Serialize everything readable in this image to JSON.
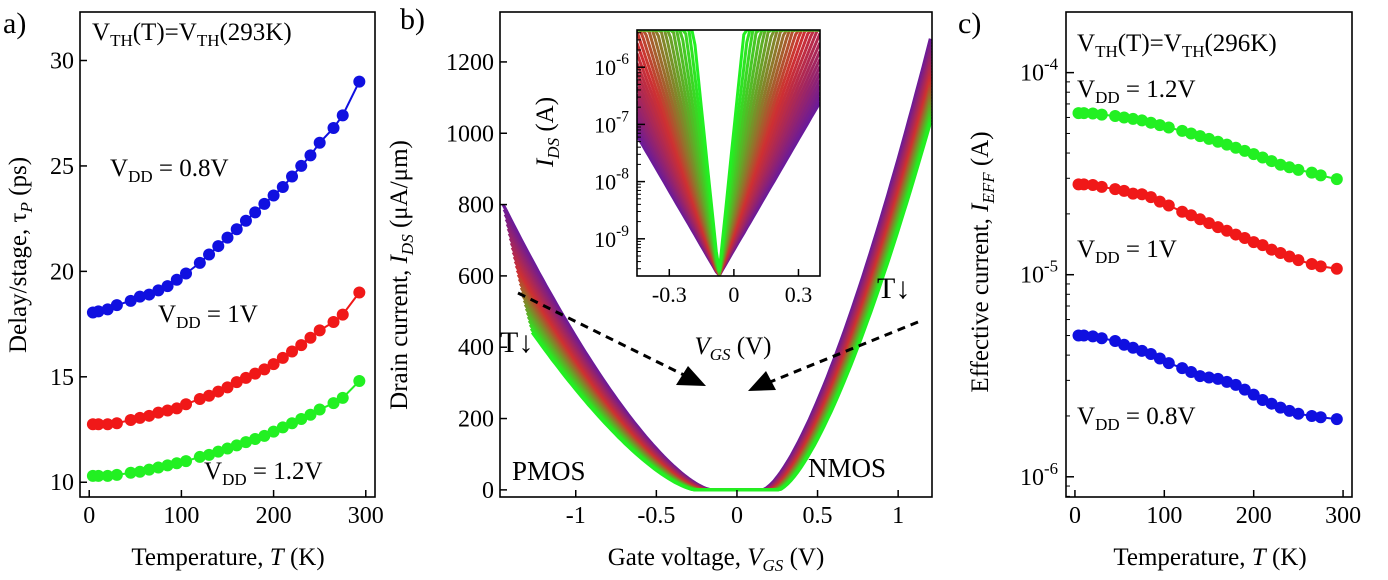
{
  "colors": {
    "blue": "#1010e0",
    "red": "#f01818",
    "green": "#22f022",
    "purple": "#6a1a9a"
  },
  "chart_data": [
    {
      "panel_label": "a)",
      "type": "line",
      "xlabel": {
        "base": "Temperature, ",
        "symbol": "T",
        "unit": " (K)"
      },
      "ylabel": {
        "base": "Delay/stage, τ",
        "sub": "P",
        "unit": " (ps)"
      },
      "xlim": [
        -10,
        310
      ],
      "ylim": [
        9.3,
        32.3
      ],
      "xticks": [
        0,
        100,
        200,
        300
      ],
      "yticks": [
        10,
        15,
        20,
        25,
        30
      ],
      "grid": false,
      "header": {
        "main": "V",
        "sub": "TH",
        "mid": "(T)=V",
        "sub2": "TH",
        "tail": "(293K)"
      },
      "x": [
        4,
        10,
        20,
        30,
        45,
        55,
        65,
        75,
        85,
        95,
        105,
        120,
        130,
        140,
        150,
        160,
        170,
        180,
        190,
        200,
        210,
        220,
        230,
        240,
        250,
        265,
        275,
        293
      ],
      "series": [
        {
          "color": "#1010e0",
          "vdd_label": {
            "pre": "V",
            "sub": "DD",
            "post": " = 0.8V"
          },
          "values": [
            18.05,
            18.1,
            18.2,
            18.4,
            18.6,
            18.8,
            18.9,
            19.1,
            19.3,
            19.6,
            19.9,
            20.4,
            20.8,
            21.2,
            21.6,
            22.0,
            22.4,
            22.8,
            23.2,
            23.6,
            24.0,
            24.5,
            25.0,
            25.5,
            26.1,
            26.8,
            27.4,
            29.0
          ]
        },
        {
          "color": "#f01818",
          "vdd_label": {
            "pre": "V",
            "sub": "DD",
            "post": " = 1V"
          },
          "values": [
            12.75,
            12.75,
            12.75,
            12.8,
            12.95,
            13.05,
            13.15,
            13.3,
            13.4,
            13.5,
            13.7,
            13.95,
            14.1,
            14.3,
            14.5,
            14.75,
            14.95,
            15.15,
            15.35,
            15.6,
            15.9,
            16.2,
            16.5,
            16.85,
            17.2,
            17.6,
            17.95,
            19.0
          ]
        },
        {
          "color": "#22f022",
          "vdd_label": {
            "pre": "V",
            "sub": "DD",
            "post": " = 1.2V"
          },
          "values": [
            10.3,
            10.3,
            10.3,
            10.35,
            10.45,
            10.5,
            10.6,
            10.7,
            10.8,
            10.9,
            11.0,
            11.2,
            11.3,
            11.45,
            11.6,
            11.75,
            11.9,
            12.05,
            12.2,
            12.4,
            12.6,
            12.8,
            13.0,
            13.2,
            13.45,
            13.75,
            14.0,
            14.8
          ]
        }
      ]
    },
    {
      "panel_label": "b)",
      "type": "line",
      "xlabel": {
        "base": "Gate voltage, ",
        "symbol": "V",
        "sub": "GS",
        "unit": " (V)"
      },
      "ylabel": {
        "base": "Drain current, ",
        "symbol": "I",
        "sub": "DS",
        "unit": " (μA/μm)"
      },
      "xlim": [
        -1.47,
        1.21
      ],
      "ylim": [
        -20,
        1340
      ],
      "xticks": [
        -1,
        -0.5,
        0,
        0.5,
        1
      ],
      "xtick_labels": [
        "-1",
        "-0.5",
        "0",
        "0.5",
        "1"
      ],
      "yticks": [
        0,
        200,
        400,
        600,
        800,
        1000,
        1200
      ],
      "grid": false,
      "curve_family": {
        "n_curves": 30,
        "color_hot": "#6a1a9a",
        "color_mid": "#d03030",
        "color_cold": "#22f022",
        "pmos_peak_range": [
          800,
          560
        ],
        "nmos_peak_range": [
          1265,
          1030
        ],
        "threshold_hot": 0.16,
        "threshold_cold": 0.26
      },
      "annotations": {
        "pmos": "PMOS",
        "nmos": "NMOS",
        "temp_left": "T↓",
        "temp_right": "T↓"
      },
      "inset": {
        "type": "line",
        "xlabel": {
          "symbol": "V",
          "sub": "GS",
          "unit": " (V)"
        },
        "ylabel": {
          "symbol": "I",
          "sub": "DS",
          "unit": " (A)"
        },
        "xlim": [
          -0.45,
          0.4
        ],
        "ylim_log": [
          -9.65,
          -5.35
        ],
        "xticks": [
          -0.3,
          0,
          0.3
        ],
        "xtick_labels": [
          "-0.3",
          "0",
          "0.3"
        ],
        "yticks_exp": [
          -9,
          -8,
          -7,
          -6
        ],
        "ytick_base": "10"
      }
    },
    {
      "panel_label": "c)",
      "type": "line",
      "xlabel": {
        "base": "Temperature, ",
        "symbol": "T",
        "unit": " (K)"
      },
      "ylabel": {
        "base": "Effective current, ",
        "symbol": "I",
        "sub": "EFF",
        "unit": " (A)"
      },
      "xlim": [
        -10,
        310
      ],
      "ylim_log": [
        -6.1,
        -3.7
      ],
      "yscale": "log",
      "xticks": [
        0,
        100,
        200,
        300
      ],
      "yticks_exp": [
        -6,
        -5,
        -4
      ],
      "ytick_base": "10",
      "grid": false,
      "header": {
        "main": "V",
        "sub": "TH",
        "mid": "(T)=V",
        "sub2": "TH",
        "tail": "(296K)"
      },
      "x": [
        4,
        10,
        20,
        30,
        45,
        55,
        65,
        75,
        85,
        95,
        105,
        120,
        130,
        140,
        150,
        160,
        170,
        180,
        190,
        200,
        210,
        220,
        230,
        240,
        250,
        265,
        275,
        293
      ],
      "series": [
        {
          "color": "#22f022",
          "vdd_label": {
            "pre": "V",
            "sub": "DD",
            "post": " = 1.2V"
          },
          "values": [
            6.3e-05,
            6.3e-05,
            6.28e-05,
            6.2e-05,
            6.1e-05,
            6e-05,
            5.9e-05,
            5.8e-05,
            5.65e-05,
            5.5e-05,
            5.35e-05,
            5.15e-05,
            5e-05,
            4.85e-05,
            4.7e-05,
            4.55e-05,
            4.4e-05,
            4.25e-05,
            4.1e-05,
            3.95e-05,
            3.8e-05,
            3.65e-05,
            3.5e-05,
            3.4e-05,
            3.3e-05,
            3.2e-05,
            3.1e-05,
            2.97e-05
          ]
        },
        {
          "color": "#f01818",
          "vdd_label": {
            "pre": "V",
            "sub": "DD",
            "post": " = 1V"
          },
          "values": [
            2.8e-05,
            2.8e-05,
            2.78e-05,
            2.72e-05,
            2.65e-05,
            2.6e-05,
            2.52e-05,
            2.5e-05,
            2.42e-05,
            2.3e-05,
            2.2e-05,
            2.05e-05,
            1.97e-05,
            1.88e-05,
            1.8e-05,
            1.72e-05,
            1.65e-05,
            1.58e-05,
            1.52e-05,
            1.45e-05,
            1.4e-05,
            1.33e-05,
            1.28e-05,
            1.23e-05,
            1.18e-05,
            1.13e-05,
            1.1e-05,
            1.07e-05
          ]
        },
        {
          "color": "#1010e0",
          "vdd_label": {
            "pre": "V",
            "sub": "DD",
            "post": " = 0.8V"
          },
          "values": [
            5e-06,
            5e-06,
            4.95e-06,
            4.85e-06,
            4.7e-06,
            4.5e-06,
            4.35e-06,
            4.2e-06,
            4.05e-06,
            3.85e-06,
            3.65e-06,
            3.45e-06,
            3.3e-06,
            3.15e-06,
            3.1e-06,
            3.05e-06,
            2.95e-06,
            2.85e-06,
            2.7e-06,
            2.55e-06,
            2.4e-06,
            2.3e-06,
            2.2e-06,
            2.12e-06,
            2.05e-06,
            2e-06,
            1.97e-06,
            1.93e-06
          ]
        }
      ]
    }
  ]
}
